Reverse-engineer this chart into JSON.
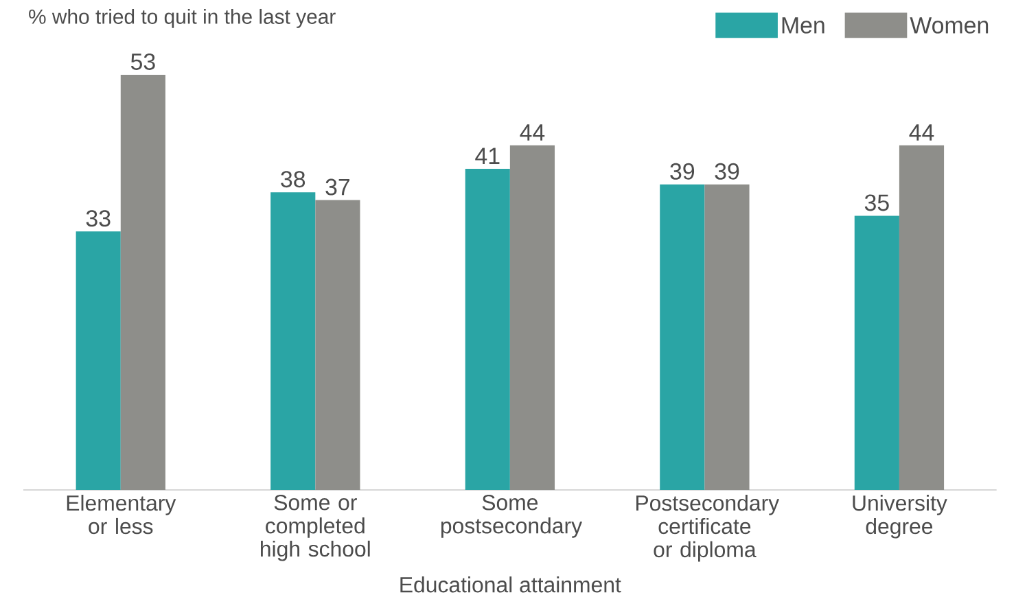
{
  "chart_data": {
    "type": "bar",
    "title": "% who tried to quit in the last year",
    "xlabel": "Educational attainment",
    "categories": [
      "Elementary or less",
      "Some or completed high school",
      "Some postsecondary",
      "Postsecondary certificate or diploma",
      "University degree"
    ],
    "series": [
      {
        "name": "Men",
        "color": "#2aa5a5",
        "values": [
          33,
          38,
          41,
          39,
          35
        ]
      },
      {
        "name": "Women",
        "color": "#8e8e8a",
        "values": [
          53,
          37,
          44,
          39,
          44
        ]
      }
    ],
    "data_labels": true,
    "legend": "top right"
  }
}
